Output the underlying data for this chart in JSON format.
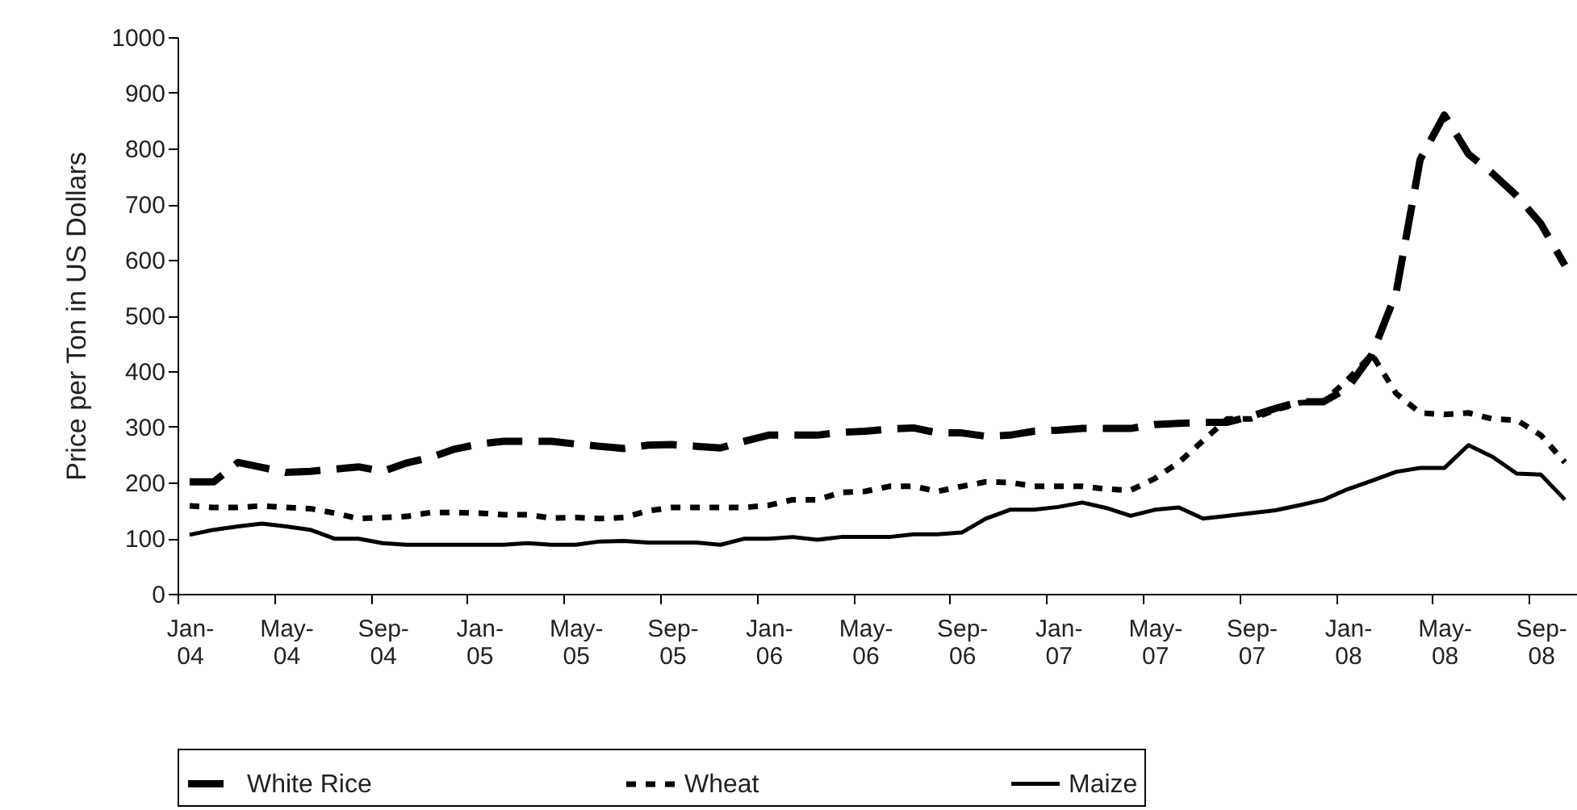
{
  "chart_data": {
    "type": "line",
    "ylabel": "Price per Ton in US Dollars",
    "categories": [
      "Jan-04",
      null,
      null,
      null,
      "May-04",
      null,
      null,
      null,
      "Sep-04",
      null,
      null,
      null,
      "Jan-05",
      null,
      null,
      null,
      "May-05",
      null,
      null,
      null,
      "Sep-05",
      null,
      null,
      null,
      "Jan-06",
      null,
      null,
      null,
      "May-06",
      null,
      null,
      null,
      "Sep-06",
      null,
      null,
      null,
      "Jan-07",
      null,
      null,
      null,
      "May-07",
      null,
      null,
      null,
      "Sep-07",
      null,
      null,
      null,
      "Jan-08",
      null,
      null,
      null,
      "May-08",
      null,
      null,
      null,
      "Sep-08",
      null
    ],
    "ylim": [
      0,
      1000
    ],
    "yticks": [
      0,
      100,
      200,
      300,
      400,
      500,
      600,
      700,
      800,
      900,
      1000
    ],
    "grid": false,
    "legend": "bottom",
    "series": [
      {
        "name": "White Rice",
        "color": "#000000",
        "line_style": "dashed",
        "values": [
          201,
          201,
          236,
          227,
          218,
          220,
          224,
          228,
          220,
          235,
          245,
          260,
          269,
          274,
          274,
          274,
          269,
          265,
          261,
          267,
          268,
          265,
          262,
          274,
          285,
          285,
          285,
          290,
          292,
          296,
          298,
          289,
          289,
          283,
          285,
          292,
          294,
          297,
          297,
          297,
          304,
          306,
          308,
          308,
          319,
          333,
          345,
          345,
          370,
          430,
          540,
          780,
          860,
          790,
          755,
          715,
          665,
          590
        ]
      },
      {
        "name": "Wheat",
        "color": "#000000",
        "line_style": "dotted",
        "values": [
          158,
          155,
          155,
          158,
          155,
          153,
          145,
          135,
          137,
          139,
          146,
          146,
          145,
          142,
          142,
          136,
          137,
          135,
          137,
          149,
          155,
          155,
          155,
          155,
          159,
          169,
          169,
          182,
          184,
          193,
          193,
          184,
          193,
          201,
          200,
          193,
          193,
          193,
          188,
          186,
          207,
          236,
          275,
          314,
          314,
          330,
          343,
          345,
          385,
          430,
          360,
          325,
          322,
          325,
          314,
          312,
          285,
          236
        ]
      },
      {
        "name": "Maize",
        "color": "#000000",
        "line_style": "solid",
        "values": [
          106,
          115,
          121,
          126,
          121,
          115,
          99,
          99,
          91,
          88,
          88,
          88,
          88,
          88,
          91,
          88,
          88,
          94,
          95,
          92,
          92,
          92,
          88,
          99,
          99,
          102,
          97,
          102,
          102,
          102,
          107,
          107,
          110,
          135,
          151,
          151,
          156,
          164,
          154,
          140,
          151,
          155,
          135,
          140,
          145,
          150,
          159,
          169,
          188,
          203,
          219,
          226,
          226,
          267,
          246,
          216,
          214,
          169
        ]
      }
    ]
  }
}
